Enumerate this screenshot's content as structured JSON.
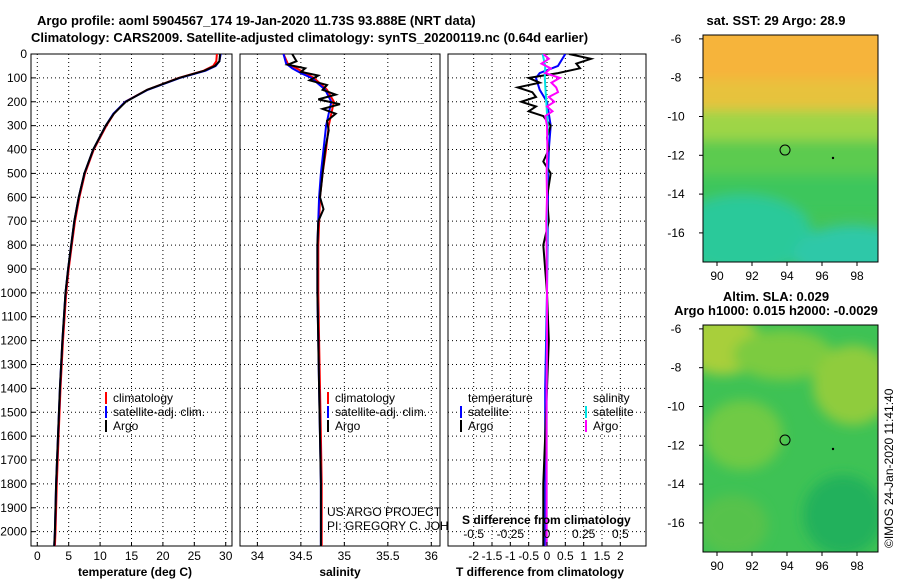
{
  "title": {
    "line1": "Argo profile: aoml 5904567_174 19-Jan-2020 11.73S 93.888E (NRT data)",
    "line2": "Climatology: CARS2009. Satellite-adjusted climatology: synTS_20200119.nc (0.64d earlier)"
  },
  "colors": {
    "climatology": "#ff0000",
    "satellite": "#0000ff",
    "argo": "#000000",
    "sat_salinity": "#00e5e5",
    "argo_salinity": "#ff00ff"
  },
  "depth_axis": {
    "range": [
      0,
      2060
    ],
    "ticks": [
      0,
      100,
      200,
      300,
      400,
      500,
      600,
      700,
      800,
      900,
      1000,
      1100,
      1200,
      1300,
      1400,
      1500,
      1600,
      1700,
      1800,
      1900,
      2000
    ]
  },
  "chart_data": [
    {
      "id": "temperature",
      "type": "line",
      "xlabel": "temperature (deg C)",
      "xlim": [
        -1,
        31
      ],
      "xticks": [
        0,
        5,
        10,
        15,
        20,
        25,
        30
      ],
      "legend": [
        "climatology",
        "satellite-adj. clim.",
        "Argo"
      ],
      "series": [
        {
          "name": "climatology",
          "color": "#ff0000",
          "depth": [
            0,
            30,
            50,
            70,
            100,
            150,
            200,
            250,
            300,
            400,
            500,
            600,
            700,
            800,
            900,
            1000,
            1200,
            1400,
            1600,
            1800,
            2000,
            2060
          ],
          "values": [
            28.6,
            28.5,
            28,
            26.5,
            22.5,
            17.5,
            14,
            12.2,
            11,
            9,
            7.6,
            6.7,
            6,
            5.5,
            5,
            4.6,
            4.1,
            3.7,
            3.4,
            3.1,
            2.9,
            2.8
          ]
        },
        {
          "name": "satellite-adj. clim.",
          "color": "#0000ff",
          "depth": [
            0,
            30,
            50,
            70,
            100,
            150,
            200,
            250,
            300,
            400,
            500,
            600,
            700,
            800,
            900,
            1000,
            1200,
            1400,
            1600,
            1800,
            2000,
            2060
          ],
          "values": [
            29.2,
            29,
            28.4,
            26.8,
            22.7,
            17.6,
            14,
            12.1,
            10.9,
            8.9,
            7.5,
            6.6,
            5.9,
            5.4,
            4.9,
            4.5,
            4,
            3.6,
            3.3,
            3,
            2.8,
            2.7
          ]
        },
        {
          "name": "Argo",
          "color": "#000000",
          "depth": [
            0,
            30,
            50,
            70,
            100,
            150,
            200,
            250,
            300,
            400,
            500,
            600,
            700,
            800,
            900,
            1000,
            1200,
            1400,
            1600,
            1800,
            2000,
            2060
          ],
          "values": [
            29.1,
            29,
            28.3,
            26.6,
            22.6,
            17.5,
            14.1,
            12.2,
            10.9,
            8.9,
            7.5,
            6.6,
            5.9,
            5.4,
            4.9,
            4.5,
            4,
            3.6,
            3.3,
            3,
            2.8,
            2.7
          ]
        }
      ]
    },
    {
      "id": "salinity",
      "type": "line",
      "xlabel": "salinity",
      "xlim": [
        33.8,
        36.1
      ],
      "xticks": [
        34,
        34.5,
        35,
        35.5,
        36
      ],
      "legend": [
        "climatology",
        "satellite-adj. clim.",
        "Argo"
      ],
      "series": [
        {
          "name": "climatology",
          "color": "#ff0000",
          "depth": [
            0,
            40,
            60,
            80,
            100,
            150,
            200,
            250,
            300,
            400,
            500,
            600,
            800,
            1000,
            1200,
            1400,
            1600,
            1800,
            2000,
            2060
          ],
          "values": [
            34.3,
            34.35,
            34.45,
            34.55,
            34.65,
            34.8,
            34.88,
            34.85,
            34.82,
            34.79,
            34.75,
            34.72,
            34.7,
            34.7,
            34.71,
            34.72,
            34.73,
            34.74,
            34.74,
            34.74
          ]
        },
        {
          "name": "satellite-adj. clim.",
          "color": "#0000ff",
          "depth": [
            0,
            40,
            60,
            80,
            100,
            150,
            200,
            250,
            300,
            400,
            500,
            600,
            800,
            1000,
            1200,
            1400,
            1600,
            1800,
            2000,
            2060
          ],
          "values": [
            34.3,
            34.33,
            34.4,
            34.5,
            34.62,
            34.78,
            34.85,
            34.82,
            34.79,
            34.76,
            34.73,
            34.71,
            34.69,
            34.69,
            34.7,
            34.71,
            34.72,
            34.73,
            34.73,
            34.73
          ]
        },
        {
          "name": "Argo",
          "color": "#000000",
          "depth": [
            0,
            30,
            45,
            60,
            75,
            90,
            110,
            130,
            150,
            170,
            190,
            210,
            230,
            250,
            280,
            320,
            400,
            500,
            600,
            650,
            700,
            800,
            1000,
            1400,
            1800,
            2060
          ],
          "values": [
            34.4,
            34.45,
            34.35,
            34.55,
            34.5,
            34.7,
            34.6,
            34.8,
            34.75,
            34.9,
            34.7,
            34.95,
            34.75,
            34.9,
            34.8,
            34.82,
            34.78,
            34.75,
            34.72,
            34.76,
            34.7,
            34.69,
            34.69,
            34.71,
            34.73,
            34.73
          ]
        }
      ]
    },
    {
      "id": "difference",
      "type": "line",
      "xlabel": "T difference from climatology",
      "xlabel2": "S difference from climatology",
      "xlim": [
        -2.7,
        2.7
      ],
      "xticks": [
        -2,
        -1.5,
        -1,
        -0.5,
        0,
        0.5,
        1,
        1.5,
        2
      ],
      "xticklabels": [
        "-2",
        "-1.5",
        "-1",
        "-0.5",
        "0",
        "0.5",
        "1",
        "1.5",
        "2"
      ],
      "x2ticks": [
        -0.5,
        -0.25,
        0,
        0.25,
        0.5
      ],
      "x2ticklabels": [
        "-0.5",
        "-0.25",
        "0",
        "0.25",
        "0.5"
      ],
      "legend_left_title": "temperature",
      "legend_right_title": "salinity",
      "legend_left": [
        "satellite",
        "Argo"
      ],
      "legend_right": [
        "satellite",
        "Argo"
      ],
      "series": [
        {
          "name": "T satellite",
          "color": "#0000ff",
          "depth": [
            0,
            50,
            80,
            100,
            150,
            200,
            300,
            400,
            500,
            700,
            1000,
            1400,
            1800,
            2060
          ],
          "values": [
            0.5,
            0.3,
            -0.2,
            -0.3,
            -0.2,
            0,
            0.1,
            0.05,
            0.03,
            0.02,
            0,
            -0.05,
            -0.05,
            -0.05
          ]
        },
        {
          "name": "T Argo",
          "color": "#000000",
          "depth": [
            0,
            20,
            40,
            60,
            80,
            100,
            120,
            140,
            160,
            180,
            200,
            220,
            240,
            260,
            300,
            350,
            400,
            450,
            500,
            600,
            700,
            800,
            1000,
            1200,
            1400,
            1600,
            1800,
            2000,
            2060
          ],
          "values": [
            0.6,
            1.2,
            0.8,
            0.9,
            0.3,
            -0.5,
            -0.2,
            -0.8,
            -0.4,
            -0.3,
            -0.7,
            -0.3,
            -0.5,
            -0.1,
            0.1,
            0,
            0.05,
            -0.1,
            0.1,
            0,
            0.05,
            -0.1,
            0,
            0.05,
            0,
            -0.05,
            -0.1,
            -0.1,
            -0.1
          ]
        },
        {
          "name": "S satellite",
          "color": "#00e5e5",
          "depth": [
            0,
            50,
            100,
            150,
            200,
            300,
            400,
            600,
            800,
            1000,
            1400,
            1800,
            2060
          ],
          "values": [
            -0.12,
            -0.05,
            -0.06,
            -0.04,
            -0.02,
            0.02,
            0.01,
            0,
            0,
            0,
            -0.01,
            -0.01,
            -0.01
          ]
        },
        {
          "name": "S Argo",
          "color": "#ff00ff",
          "depth": [
            0,
            20,
            40,
            60,
            80,
            100,
            120,
            140,
            160,
            180,
            200,
            220,
            240,
            260,
            300,
            400,
            500,
            600,
            700,
            800,
            1000,
            1200,
            1400,
            1600,
            1800,
            2000,
            2060
          ],
          "values": [
            -0.1,
            0.05,
            -0.15,
            0.1,
            -0.05,
            0.35,
            0.12,
            0.25,
            0.3,
            0.05,
            0.2,
            0,
            0.15,
            -0.05,
            0,
            0.01,
            -0.01,
            0,
            -0.02,
            -0.01,
            0,
            0,
            -0.01,
            -0.01,
            -0.01,
            -0.01,
            -0.01
          ]
        }
      ]
    },
    {
      "id": "sst_map",
      "type": "heatmap",
      "title": "sat. SST: 29 Argo: 28.9",
      "xlim": [
        89.2,
        99.2
      ],
      "ylim": [
        -17.5,
        -5.8
      ],
      "xticks": [
        90,
        92,
        94,
        96,
        98
      ],
      "yticks": [
        -6,
        -8,
        -10,
        -12,
        -14,
        -16
      ],
      "argo_position": [
        93.888,
        -11.73
      ]
    },
    {
      "id": "sla_map",
      "type": "heatmap",
      "title": "Altim. SLA: 0.029",
      "subtitle": "Argo h1000: 0.015 h2000: -0.0029",
      "xlim": [
        89.2,
        99.2
      ],
      "ylim": [
        -17.5,
        -5.8
      ],
      "xticks": [
        90,
        92,
        94,
        96,
        98
      ],
      "yticks": [
        -6,
        -8,
        -10,
        -12,
        -14,
        -16
      ],
      "argo_position": [
        93.888,
        -11.73
      ]
    }
  ],
  "credits": {
    "project": "US ARGO PROJECT",
    "pi": "PI: GREGORY C. JOHNSON",
    "stamp": "©IMOS 24-Jan-2020 11:41:40"
  }
}
